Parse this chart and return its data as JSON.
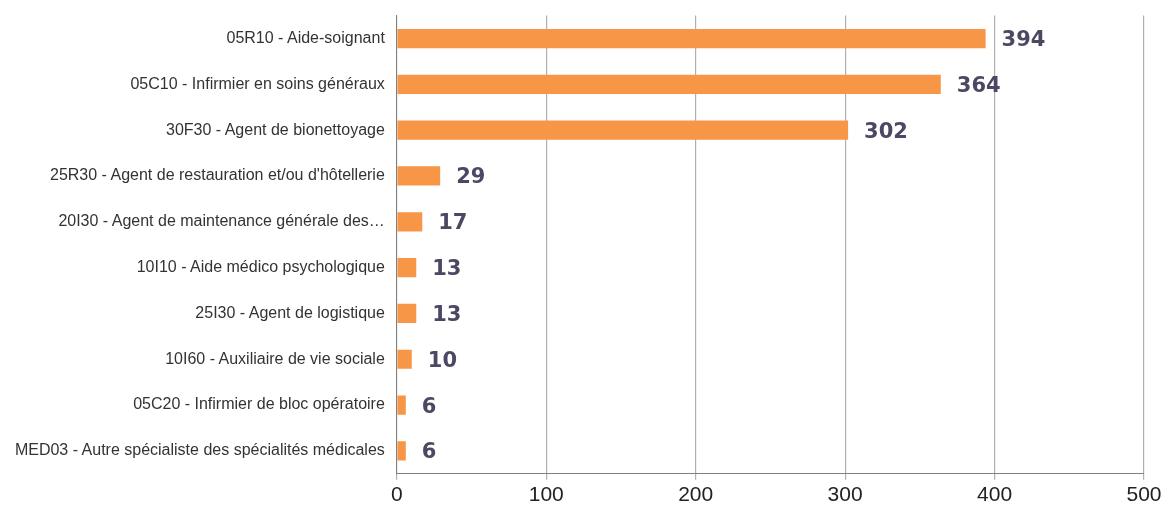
{
  "chart_data": {
    "type": "bar",
    "orientation": "horizontal",
    "categories": [
      "05R10 - Aide-soignant",
      "05C10 - Infirmier en soins généraux",
      "30F30 - Agent de bionettoyage",
      "25R30 - Agent de restauration et/ou d'hôtellerie",
      "20I30 - Agent de maintenance générale des…",
      "10I10 - Aide médico psychologique",
      "25I30 - Agent de logistique",
      "10I60 - Auxiliaire de vie sociale",
      "05C20 - Infirmier de bloc opératoire",
      "MED03 - Autre spécialiste des spécialités médicales"
    ],
    "values": [
      394,
      364,
      302,
      29,
      17,
      13,
      13,
      10,
      6,
      6
    ],
    "color": "#f79646",
    "xlim": [
      0,
      500
    ],
    "xticks": [
      0,
      100,
      200,
      300,
      400,
      500
    ],
    "grid": "x",
    "legend": false,
    "data_labels": true
  }
}
